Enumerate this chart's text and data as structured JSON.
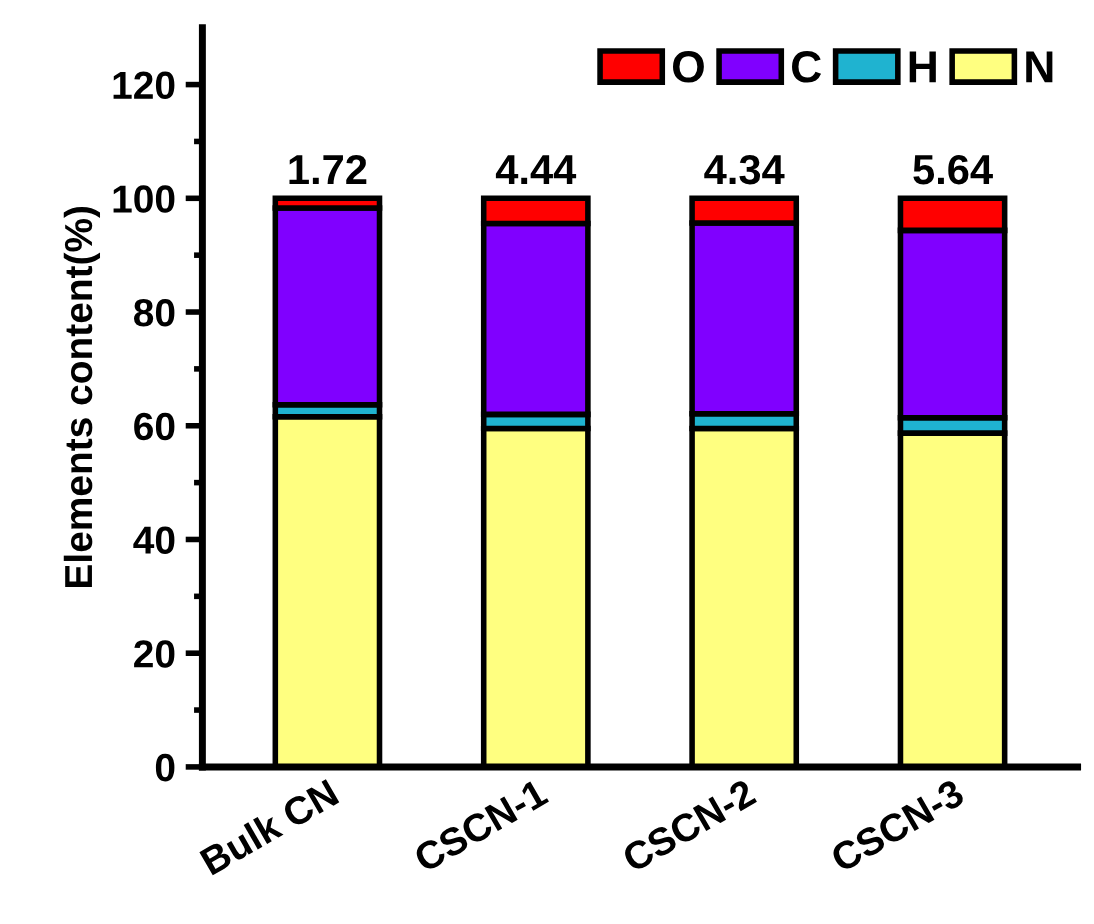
{
  "chart_data": {
    "type": "bar",
    "stacked": true,
    "ylabel": "Elements content(%)",
    "categories": [
      "Bulk CN",
      "CSCN-1",
      "CSCN-2",
      "CSCN-3"
    ],
    "series": [
      {
        "name": "N",
        "color": "#ffff80",
        "values": [
          61.6,
          59.5,
          59.5,
          58.7
        ]
      },
      {
        "name": "H",
        "color": "#1fb3d0",
        "values": [
          2.1,
          2.5,
          2.6,
          2.7
        ]
      },
      {
        "name": "C",
        "color": "#8000ff",
        "values": [
          34.58,
          33.56,
          33.56,
          32.96
        ]
      },
      {
        "name": "O",
        "color": "#ff0000",
        "values": [
          1.72,
          4.44,
          4.34,
          5.64
        ],
        "value_labels": [
          "1.72",
          "4.44",
          "4.34",
          "5.64"
        ]
      }
    ],
    "ylim": [
      0,
      130
    ],
    "yticks": [
      0,
      {
        "value": 10,
        "label": null
      },
      20,
      {
        "value": 30,
        "label": null
      },
      40,
      {
        "value": 50,
        "label": null
      },
      60,
      {
        "value": 70,
        "label": null
      },
      80,
      {
        "value": 90,
        "label": null
      },
      100,
      {
        "value": 110,
        "label": null
      },
      120
    ],
    "legend": "top right",
    "grid": false
  }
}
